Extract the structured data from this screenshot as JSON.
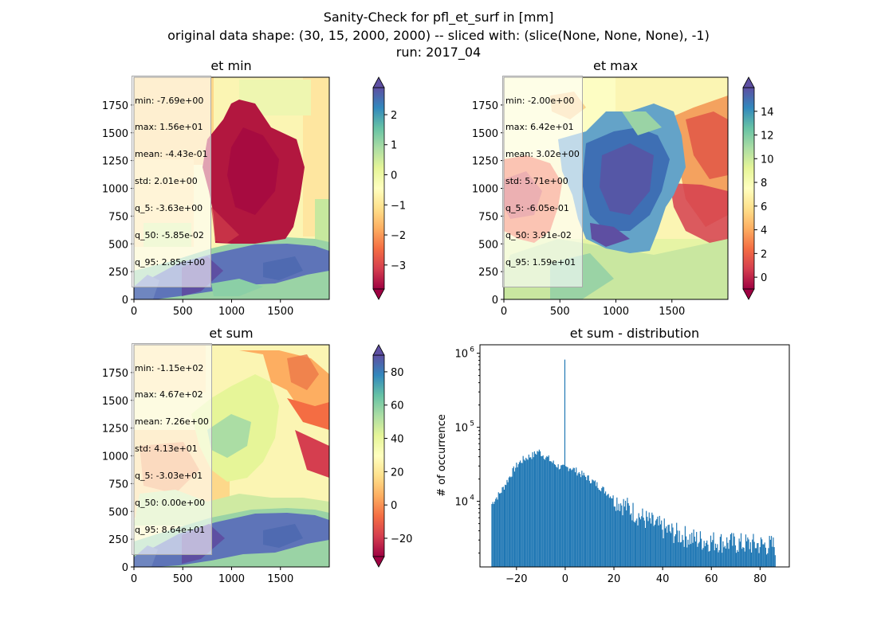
{
  "figure": {
    "suptitle_lines": [
      "Sanity-Check for pfl_et_surf in [mm]",
      "original data shape: (30, 15, 2000, 2000) -- sliced with: (slice(None, None, None), -1)",
      "run: 2017_04"
    ]
  },
  "colors": {
    "bar": "#1f77b4",
    "colormap": "Spectral"
  },
  "chart_data": [
    {
      "type": "heatmap",
      "title": "et min",
      "colormap": "Spectral",
      "xlim": [
        0,
        2000
      ],
      "ylim": [
        0,
        2000
      ],
      "x_ticks": [
        0,
        500,
        1000,
        1500
      ],
      "y_ticks": [
        0,
        250,
        500,
        750,
        1000,
        1250,
        1500,
        1750
      ],
      "colorbar": {
        "range": [
          -3.8,
          2.9
        ],
        "ticks": [
          -3,
          -2,
          -1,
          0,
          1,
          2
        ],
        "extend": "both"
      },
      "stats": [
        "min: -7.69e+00",
        "max: 1.56e+01",
        "mean: -4.43e-01",
        "std: 2.01e+00",
        "q_5: -3.63e+00",
        "q_50: -5.85e-02",
        "q_95: 2.85e+00"
      ]
    },
    {
      "type": "heatmap",
      "title": "et max",
      "colormap": "Spectral",
      "xlim": [
        0,
        2000
      ],
      "ylim": [
        0,
        2000
      ],
      "x_ticks": [
        0,
        500,
        1000,
        1500
      ],
      "y_ticks": [
        0,
        250,
        500,
        750,
        1000,
        1250,
        1500,
        1750
      ],
      "colorbar": {
        "range": [
          -1.0,
          16.0
        ],
        "ticks": [
          0,
          2,
          4,
          6,
          8,
          10,
          12,
          14
        ],
        "extend": "both"
      },
      "stats": [
        "min: -2.00e+00",
        "max: 6.42e+01",
        "mean: 3.02e+00",
        "std: 5.71e+00",
        "q_5: -6.05e-01",
        "q_50: 3.91e-02",
        "q_95: 1.59e+01"
      ]
    },
    {
      "type": "heatmap",
      "title": "et sum",
      "colormap": "Spectral",
      "xlim": [
        0,
        2000
      ],
      "ylim": [
        0,
        2000
      ],
      "x_ticks": [
        0,
        500,
        1000,
        1500
      ],
      "y_ticks": [
        0,
        250,
        500,
        750,
        1000,
        1250,
        1500,
        1750
      ],
      "colorbar": {
        "range": [
          -31,
          90
        ],
        "ticks": [
          -20,
          0,
          20,
          40,
          60,
          80
        ],
        "extend": "both"
      },
      "stats": [
        "min: -1.15e+02",
        "max: 4.67e+02",
        "mean: 7.26e+00",
        "std: 4.13e+01",
        "q_5: -3.03e+01",
        "q_50: 0.00e+00",
        "q_95: 8.64e+01"
      ]
    },
    {
      "type": "bar",
      "title": "et sum - distribution",
      "ylabel": "# of occurrence",
      "xlabel": "",
      "y_scale": "log",
      "xlim": [
        -35,
        92
      ],
      "ylim": [
        1300,
        1300000
      ],
      "x_ticks": [
        -20,
        0,
        20,
        40,
        60,
        80
      ],
      "y_tick_labels": [
        {
          "value": 10000,
          "label": "10^4"
        },
        {
          "value": 100000,
          "label": "10^5"
        },
        {
          "value": 1000000,
          "label": "10^6"
        }
      ],
      "bin_range": [
        -30.3,
        86.4
      ],
      "bin_count": 300,
      "profile": [
        [
          -30.3,
          9000
        ],
        [
          -29,
          10500
        ],
        [
          -27,
          12500
        ],
        [
          -25,
          16000
        ],
        [
          -23,
          21000
        ],
        [
          -21,
          27000
        ],
        [
          -19,
          33000
        ],
        [
          -17,
          37000
        ],
        [
          -15,
          40000
        ],
        [
          -13,
          42000
        ],
        [
          -11,
          48000
        ],
        [
          -9,
          42000
        ],
        [
          -7,
          38000
        ],
        [
          -5,
          33000
        ],
        [
          -3,
          30000
        ],
        [
          -1,
          28000
        ],
        [
          0,
          28000
        ],
        [
          2,
          29000
        ],
        [
          5,
          25000
        ],
        [
          10,
          20000
        ],
        [
          15,
          15000
        ],
        [
          20,
          11000
        ],
        [
          25,
          8500
        ],
        [
          30,
          6500
        ],
        [
          35,
          5200
        ],
        [
          40,
          4300
        ],
        [
          45,
          3700
        ],
        [
          50,
          3300
        ],
        [
          55,
          3000
        ],
        [
          60,
          2900
        ],
        [
          65,
          2800
        ],
        [
          70,
          2700
        ],
        [
          75,
          2650
        ],
        [
          80,
          2600
        ],
        [
          86.4,
          2500
        ]
      ],
      "spike": {
        "x": 0,
        "value": 820000
      }
    }
  ]
}
